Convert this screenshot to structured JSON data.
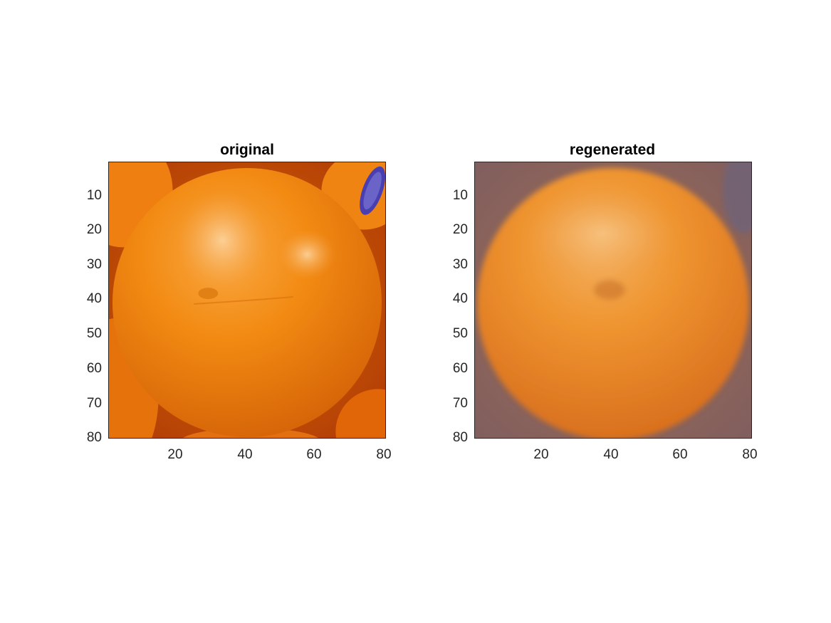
{
  "panels": [
    {
      "title": "original",
      "yticks": [
        "10",
        "20",
        "30",
        "40",
        "50",
        "60",
        "70",
        "80"
      ],
      "xticks": [
        "20",
        "40",
        "60",
        "80"
      ]
    },
    {
      "title": "regenerated",
      "yticks": [
        "10",
        "20",
        "30",
        "40",
        "50",
        "60",
        "70",
        "80"
      ],
      "xticks": [
        "20",
        "40",
        "60",
        "80"
      ]
    }
  ],
  "colors": {
    "orange_main": "#f28a12",
    "orange_dark": "#d9650a",
    "orange_highlight": "#f7b254",
    "background_original": "#b83f05",
    "background_regenerated": "#8a6a60",
    "sticker_blue": "#4a3fb0"
  }
}
